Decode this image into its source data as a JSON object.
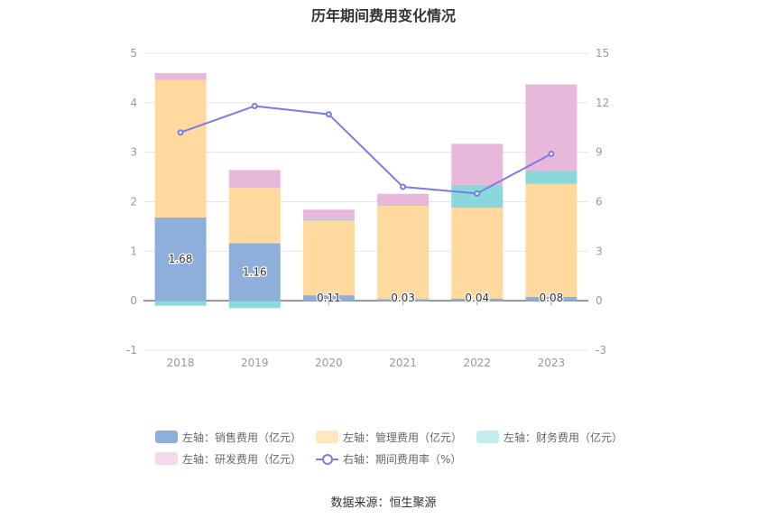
{
  "chart_data": {
    "type": "bar",
    "title": "历年期间费用变化情况",
    "categories": [
      "2018",
      "2019",
      "2020",
      "2021",
      "2022",
      "2023"
    ],
    "left_axis": {
      "ticks": [
        "5",
        "4",
        "3",
        "2",
        "1",
        "0",
        "-1"
      ],
      "ylim": [
        -1,
        5
      ]
    },
    "right_axis": {
      "ticks": [
        "15",
        "12",
        "9",
        "6",
        "3",
        "0",
        "-3"
      ],
      "ylim": [
        -3,
        15
      ]
    },
    "series": [
      {
        "name": "左轴：销售费用（亿元）",
        "type": "bar",
        "axis": "left",
        "color": "#8eaedb",
        "values": [
          1.68,
          1.16,
          0.11,
          0.03,
          0.04,
          0.08
        ],
        "labels": [
          "1.68",
          "1.16",
          "0.11",
          "0.03",
          "0.04",
          "0.08"
        ]
      },
      {
        "name": "左轴：管理费用（亿元）",
        "type": "bar",
        "axis": "left",
        "color": "#ffd99e",
        "values": [
          2.78,
          1.12,
          1.51,
          1.89,
          1.84,
          2.28
        ]
      },
      {
        "name": "左轴：财务费用（亿元）",
        "type": "bar",
        "axis": "left",
        "color": "#8ad8dc",
        "values": [
          -0.1,
          -0.15,
          0.03,
          0.02,
          0.46,
          0.27
        ]
      },
      {
        "name": "左轴：研发费用（亿元）",
        "type": "bar",
        "axis": "left",
        "color": "#e8b8da",
        "values": [
          0.14,
          0.36,
          0.19,
          0.22,
          0.83,
          1.74
        ]
      },
      {
        "name": "右轴：期间费用率（%）",
        "type": "line",
        "axis": "right",
        "color": "#7b7be8",
        "values": [
          10.2,
          11.8,
          11.3,
          6.9,
          6.5,
          8.9
        ]
      }
    ],
    "legend_position": "bottom",
    "grid": true
  },
  "legend_colors": [
    "#8eaedb",
    "#ffe7c2",
    "#c4ecee",
    "#f4d9ec",
    "#7b7be8"
  ],
  "source": "数据来源：恒生聚源"
}
